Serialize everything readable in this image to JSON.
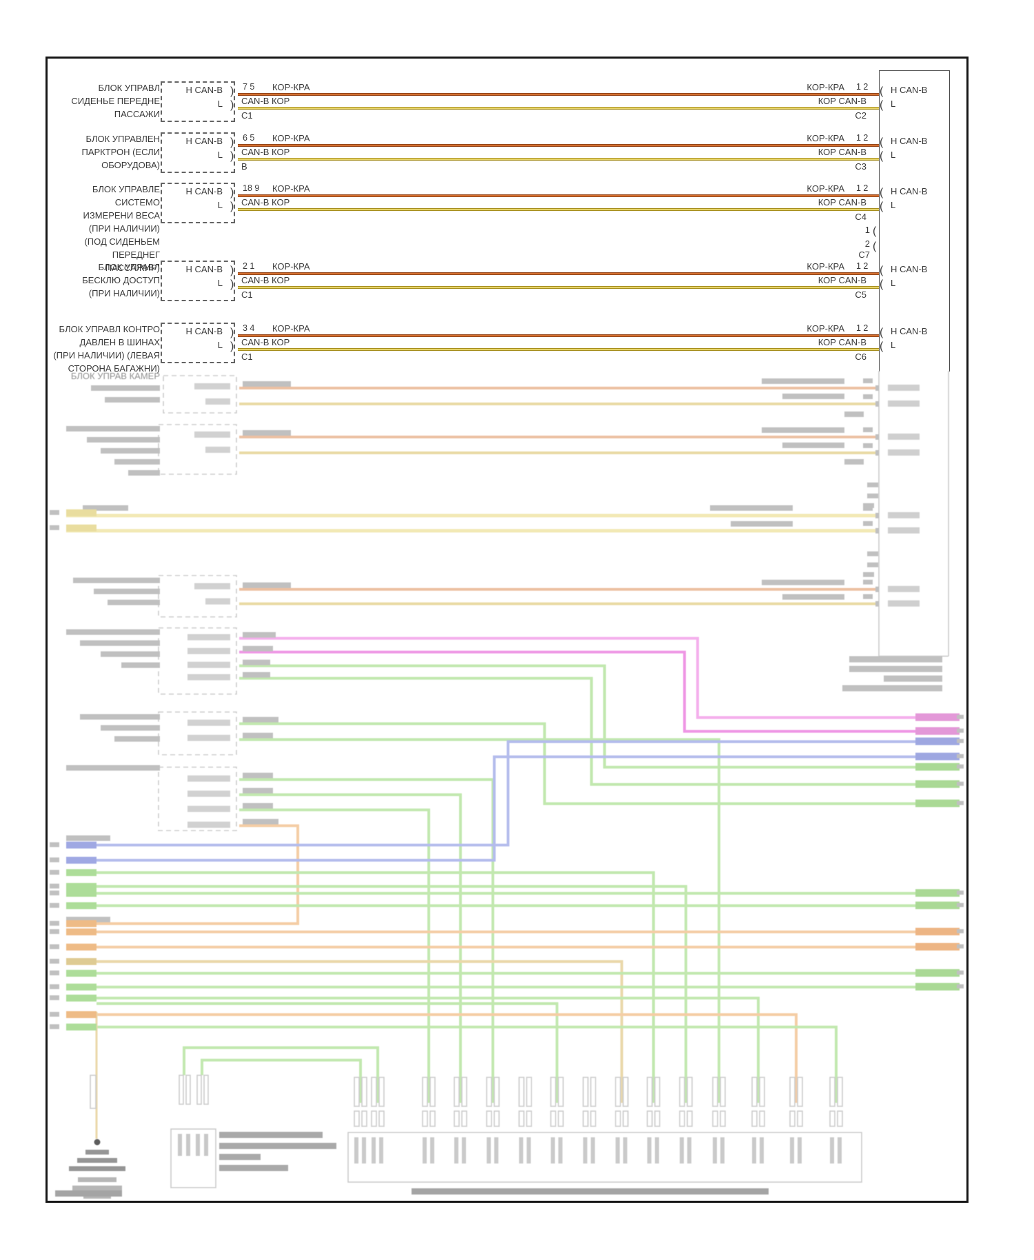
{
  "bus": {
    "h_label": "H CAN-B",
    "l_label": "L"
  },
  "rows": [
    {
      "label_lines": [
        "БЛОК УПРАВЛ",
        "СИДЕНЬЕ ПЕРЕДНЕ",
        "ПАССАЖИ"
      ],
      "h_label": "H CAN-B",
      "l_label": "L",
      "pins": "7 5",
      "wire_h": "КОР-КРА",
      "wire_l": "CAN-B КОР",
      "conn": "C1",
      "right_wire_h": "КОР-КРА",
      "right_pins": "1 2",
      "right_wire_l": "КОР CAN-B",
      "right_conn": "C2",
      "bus_h": "H CAN-B",
      "bus_l": "L"
    },
    {
      "label_lines": [
        "БЛОК УПРАВЛЕН",
        "ПАРКТРОН (ЕСЛИ",
        "ОБОРУДОВА)"
      ],
      "h_label": "H CAN-B",
      "l_label": "L",
      "pins": "6 5",
      "wire_h": "КОР-КРА",
      "wire_l": "CAN-B КОР",
      "conn": "B",
      "right_wire_h": "КОР-КРА",
      "right_pins": "1 2",
      "right_wire_l": "КОР CAN-B",
      "right_conn": "C3",
      "bus_h": "H CAN-B",
      "bus_l": "L"
    },
    {
      "label_lines": [
        "БЛОК УПРАВЛЕ СИСТЕМО",
        "ИЗМЕРЕНИ ВЕСА",
        "(ПРИ НАЛИЧИИ)",
        "(ПОД СИДЕНЬЕМ ПЕРЕДНЕГ",
        "ПАССАЖИР)"
      ],
      "h_label": "H CAN-B",
      "l_label": "L",
      "pins": "18 9",
      "wire_h": "КОР-КРА",
      "wire_l": "CAN-B КОР",
      "conn": "",
      "right_wire_h": "КОР-КРА",
      "right_pins": "1 2",
      "right_wire_l": "КОР CAN-B",
      "right_conn": "C4",
      "bus_h": "H CAN-B",
      "bus_l": "L"
    },
    {
      "label_lines": [
        "БЛОК УПРАВЛ",
        "БЕСКЛЮ ДОСТУП",
        "(ПРИ НАЛИЧИИ)"
      ],
      "h_label": "H CAN-B",
      "l_label": "L",
      "pins": "2 1",
      "wire_h": "КОР-КРА",
      "wire_l": "CAN-B КОР",
      "conn": "C1",
      "right_wire_h": "КОР-КРА",
      "right_pins": "1 2",
      "right_wire_l": "КОР CAN-B",
      "right_conn": "C5",
      "bus_h": "H CAN-B",
      "bus_l": "L"
    },
    {
      "label_lines": [
        "БЛОК УПРАВЛ КОНТРО",
        "ДАВЛЕН В ШИНАХ",
        "(ПРИ НАЛИЧИИ) (ЛЕВАЯ",
        "СТОРОНА БАГАЖНИ)"
      ],
      "h_label": "H CAN-B",
      "l_label": "L",
      "pins": "3 4",
      "wire_h": "КОР-КРА",
      "wire_l": "CAN-B КОР",
      "conn": "C1",
      "right_wire_h": "КОР-КРА",
      "right_pins": "1 2",
      "right_wire_l": "КОР CAN-B",
      "right_conn": "C6",
      "bus_h": "H CAN-B",
      "bus_l": "L"
    }
  ],
  "stub": {
    "pin1": "1",
    "pin2": "2",
    "conn": "C7"
  },
  "faded": {
    "camera_block_line": "БЛОК УПРАВ КАМЕР"
  },
  "colors": {
    "wire_brown_red": "#c1592a",
    "wire_brown": "#d9c250",
    "frame": "#161616"
  }
}
